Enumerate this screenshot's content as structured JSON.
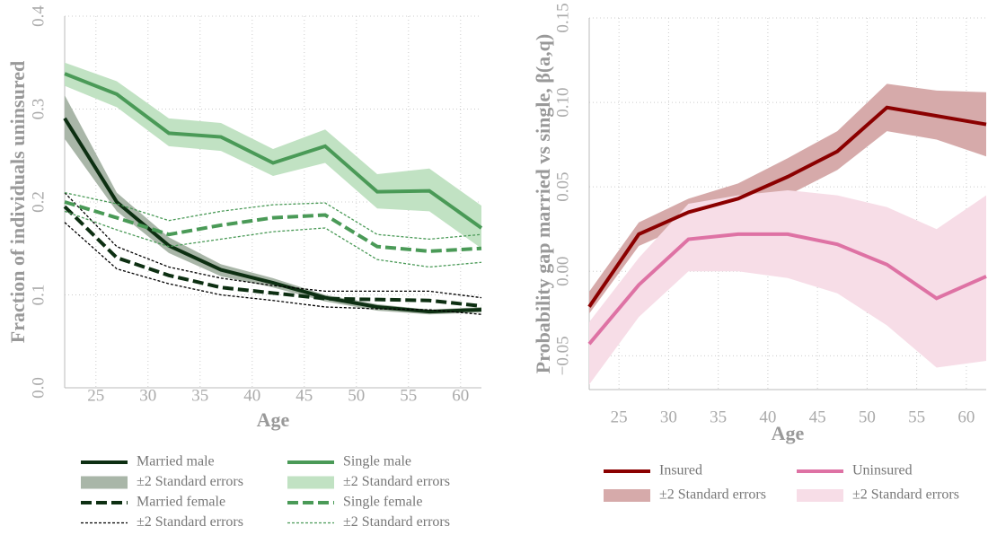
{
  "chart_data": [
    {
      "type": "line",
      "x_label": "Age",
      "y_label": "Fraction of individuals uninsured",
      "x": [
        22,
        27,
        32,
        37,
        42,
        47,
        52,
        57,
        62
      ],
      "xlim": [
        22,
        62
      ],
      "xticks": [
        25,
        30,
        35,
        40,
        45,
        50,
        55,
        60
      ],
      "ylim": [
        0,
        0.4
      ],
      "yticks": [
        {
          "value": 0,
          "label": "0.0"
        },
        0.1,
        0.2,
        0.3,
        0.4
      ],
      "grid": true,
      "series": [
        {
          "name": "Married male",
          "color": "#0d2f12",
          "linestyle": "solid",
          "values": [
            0.29,
            0.2,
            0.153,
            0.127,
            0.113,
            0.097,
            0.087,
            0.082,
            0.084
          ],
          "band": {
            "name": "±2 Standard errors",
            "style": "fill",
            "color": "#a9b6a8",
            "upper": [
              0.315,
              0.21,
              0.162,
              0.133,
              0.118,
              0.1,
              0.09,
              0.084,
              0.087
            ],
            "lower": [
              0.268,
              0.19,
              0.145,
              0.12,
              0.108,
              0.093,
              0.083,
              0.079,
              0.081
            ]
          }
        },
        {
          "name": "Single male",
          "color": "#4a9a57",
          "linestyle": "solid",
          "values": [
            0.338,
            0.316,
            0.274,
            0.27,
            0.242,
            0.26,
            0.211,
            0.212,
            0.172
          ],
          "band": {
            "name": "±2 Standard errors",
            "style": "fill",
            "color": "#c1e2c3",
            "upper": [
              0.35,
              0.33,
              0.29,
              0.285,
              0.257,
              0.278,
              0.23,
              0.236,
              0.196
            ],
            "lower": [
              0.325,
              0.302,
              0.26,
              0.255,
              0.228,
              0.242,
              0.193,
              0.19,
              0.15
            ]
          }
        },
        {
          "name": "Married female",
          "color": "#0d2f12",
          "linestyle": "dashed",
          "values": [
            0.195,
            0.14,
            0.121,
            0.108,
            0.102,
            0.096,
            0.095,
            0.094,
            0.088
          ],
          "band": {
            "name": "±2 Standard errors",
            "style": "lines",
            "color": "#000000",
            "upper": [
              0.21,
              0.152,
              0.13,
              0.118,
              0.11,
              0.104,
              0.104,
              0.104,
              0.097
            ],
            "lower": [
              0.178,
              0.128,
              0.112,
              0.1,
              0.094,
              0.087,
              0.085,
              0.084,
              0.079
            ]
          }
        },
        {
          "name": "Single female",
          "color": "#4a9a57",
          "linestyle": "dashed",
          "values": [
            0.2,
            0.183,
            0.165,
            0.175,
            0.183,
            0.186,
            0.152,
            0.147,
            0.15
          ],
          "band": {
            "name": "±2 Standard errors",
            "style": "lines",
            "color": "#4a9a57",
            "upper": [
              0.21,
              0.198,
              0.18,
              0.19,
              0.197,
              0.199,
              0.165,
              0.16,
              0.165
            ],
            "lower": [
              0.19,
              0.17,
              0.152,
              0.16,
              0.168,
              0.172,
              0.138,
              0.13,
              0.135
            ]
          }
        }
      ]
    },
    {
      "type": "line",
      "x_label": "Age",
      "y_label": "Probability gap married vs single, β(a,q)",
      "x": [
        22,
        27,
        32,
        37,
        42,
        47,
        52,
        57,
        62
      ],
      "xlim": [
        22,
        62
      ],
      "xticks": [
        25,
        30,
        35,
        40,
        45,
        50,
        55,
        60
      ],
      "ylim": [
        -0.07,
        0.15
      ],
      "yticks": [
        {
          "value": -0.05,
          "label": "−0.05"
        },
        {
          "value": 0,
          "label": "0.00"
        },
        0.05,
        {
          "value": 0.1,
          "label": "0.10"
        },
        0.15
      ],
      "grid": true,
      "series": [
        {
          "name": "Insured",
          "color": "#8b0000",
          "linestyle": "solid",
          "values": [
            -0.021,
            0.022,
            0.035,
            0.043,
            0.056,
            0.071,
            0.097,
            0.092,
            0.087
          ],
          "band": {
            "name": "±2 Standard errors",
            "style": "fill",
            "color": "#d6aaaa",
            "upper": [
              -0.012,
              0.029,
              0.043,
              0.052,
              0.067,
              0.083,
              0.111,
              0.107,
              0.106
            ],
            "lower": [
              -0.025,
              0.015,
              0.028,
              0.035,
              0.045,
              0.06,
              0.083,
              0.078,
              0.068
            ]
          }
        },
        {
          "name": "Uninsured",
          "color": "#de72a4",
          "linestyle": "solid",
          "values": [
            -0.043,
            -0.008,
            0.019,
            0.022,
            0.022,
            0.016,
            0.004,
            -0.016,
            -0.003
          ],
          "band": {
            "name": "±2 Standard errors",
            "style": "fill",
            "color": "#f7dde7",
            "upper": [
              -0.03,
              0.008,
              0.04,
              0.045,
              0.048,
              0.045,
              0.038,
              0.025,
              0.045
            ],
            "lower": [
              -0.067,
              -0.027,
              0,
              0,
              -0.004,
              -0.013,
              -0.032,
              -0.057,
              -0.053
            ]
          }
        }
      ]
    }
  ]
}
